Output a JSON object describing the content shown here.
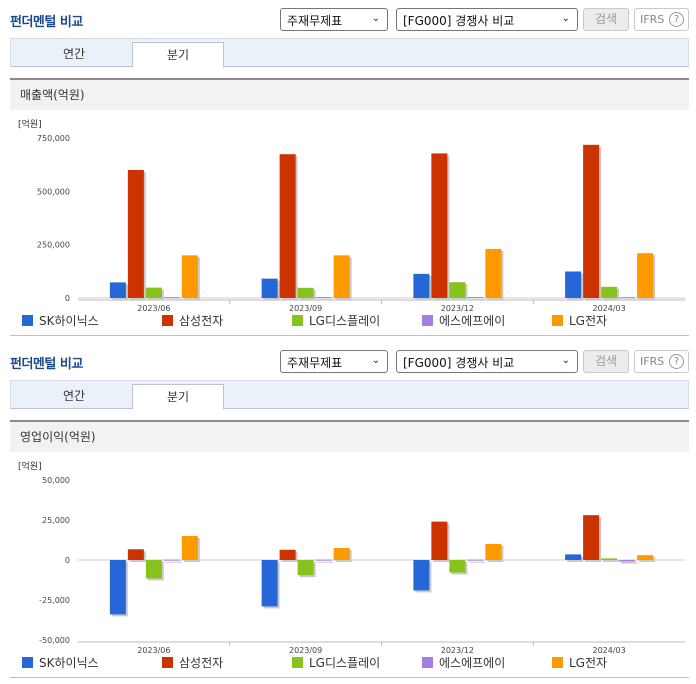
{
  "sections": [
    {
      "title": "펀더멘털 비교",
      "selects": {
        "statement": "주재무제표",
        "comparison": "[FG000] 경쟁사 비교"
      },
      "search_label": "검색",
      "ifrs_label": "IFRS",
      "help_label": "?",
      "tabs": [
        {
          "label": "연간"
        },
        {
          "label": "분기",
          "active": true
        }
      ],
      "chart_title": "매출액(억원)"
    },
    {
      "title": "펀더멘털 비교",
      "selects": {
        "statement": "주재무제표",
        "comparison": "[FG000] 경쟁사 비교"
      },
      "search_label": "검색",
      "ifrs_label": "IFRS",
      "help_label": "?",
      "tabs": [
        {
          "label": "연간"
        },
        {
          "label": "분기",
          "active": true
        }
      ],
      "chart_title": "영업이익(억원)"
    }
  ],
  "colors": {
    "SK하이닉스": "#2566d8",
    "삼성전자": "#cc3300",
    "LG디스플레이": "#88c21c",
    "에스에프에이": "#a77de0",
    "LG전자": "#ff9900"
  },
  "chart_data": [
    {
      "type": "bar",
      "title": "매출액(억원)",
      "unit_label": "[억원]",
      "categories": [
        "2023/06",
        "2023/09",
        "2023/12",
        "2024/03"
      ],
      "ylim": [
        0,
        750000
      ],
      "yticks": [
        0,
        250000,
        500000,
        750000
      ],
      "ytick_labels": [
        "0",
        "250,000",
        "500,000",
        "750,000"
      ],
      "legend": "bottom",
      "series": [
        {
          "name": "SK하이닉스",
          "values": [
            73059,
            90662,
            113055,
            124296
          ]
        },
        {
          "name": "삼성전자",
          "values": [
            600055,
            674047,
            677799,
            717916
          ]
        },
        {
          "name": "LG디스플레이",
          "values": [
            48810,
            47840,
            74000,
            52530
          ]
        },
        {
          "name": "에스에프에이",
          "values": [
            4200,
            4300,
            4500,
            4000
          ]
        },
        {
          "name": "LG전자",
          "values": [
            199984,
            200000,
            230000,
            210000
          ]
        }
      ]
    },
    {
      "type": "bar",
      "title": "영업이익(억원)",
      "unit_label": "[억원]",
      "categories": [
        "2023/06",
        "2023/09",
        "2023/12",
        "2024/03"
      ],
      "ylim": [
        -50000,
        50000
      ],
      "yticks": [
        -50000,
        -25000,
        0,
        25000,
        50000
      ],
      "ytick_labels": [
        "-50,000",
        "-25,000",
        "0",
        "25,000",
        "50,000"
      ],
      "legend": "bottom",
      "series": [
        {
          "name": "SK하이닉스",
          "values": [
            -34000,
            -29000,
            -19000,
            3500
          ]
        },
        {
          "name": "삼성전자",
          "values": [
            6700,
            6400,
            24000,
            28000
          ]
        },
        {
          "name": "LG디스플레이",
          "values": [
            -11500,
            -9500,
            -7800,
            1000
          ]
        },
        {
          "name": "에스에프에이",
          "values": [
            200,
            200,
            200,
            -1000
          ]
        },
        {
          "name": "LG전자",
          "values": [
            15000,
            7500,
            10000,
            3000
          ]
        }
      ]
    }
  ]
}
